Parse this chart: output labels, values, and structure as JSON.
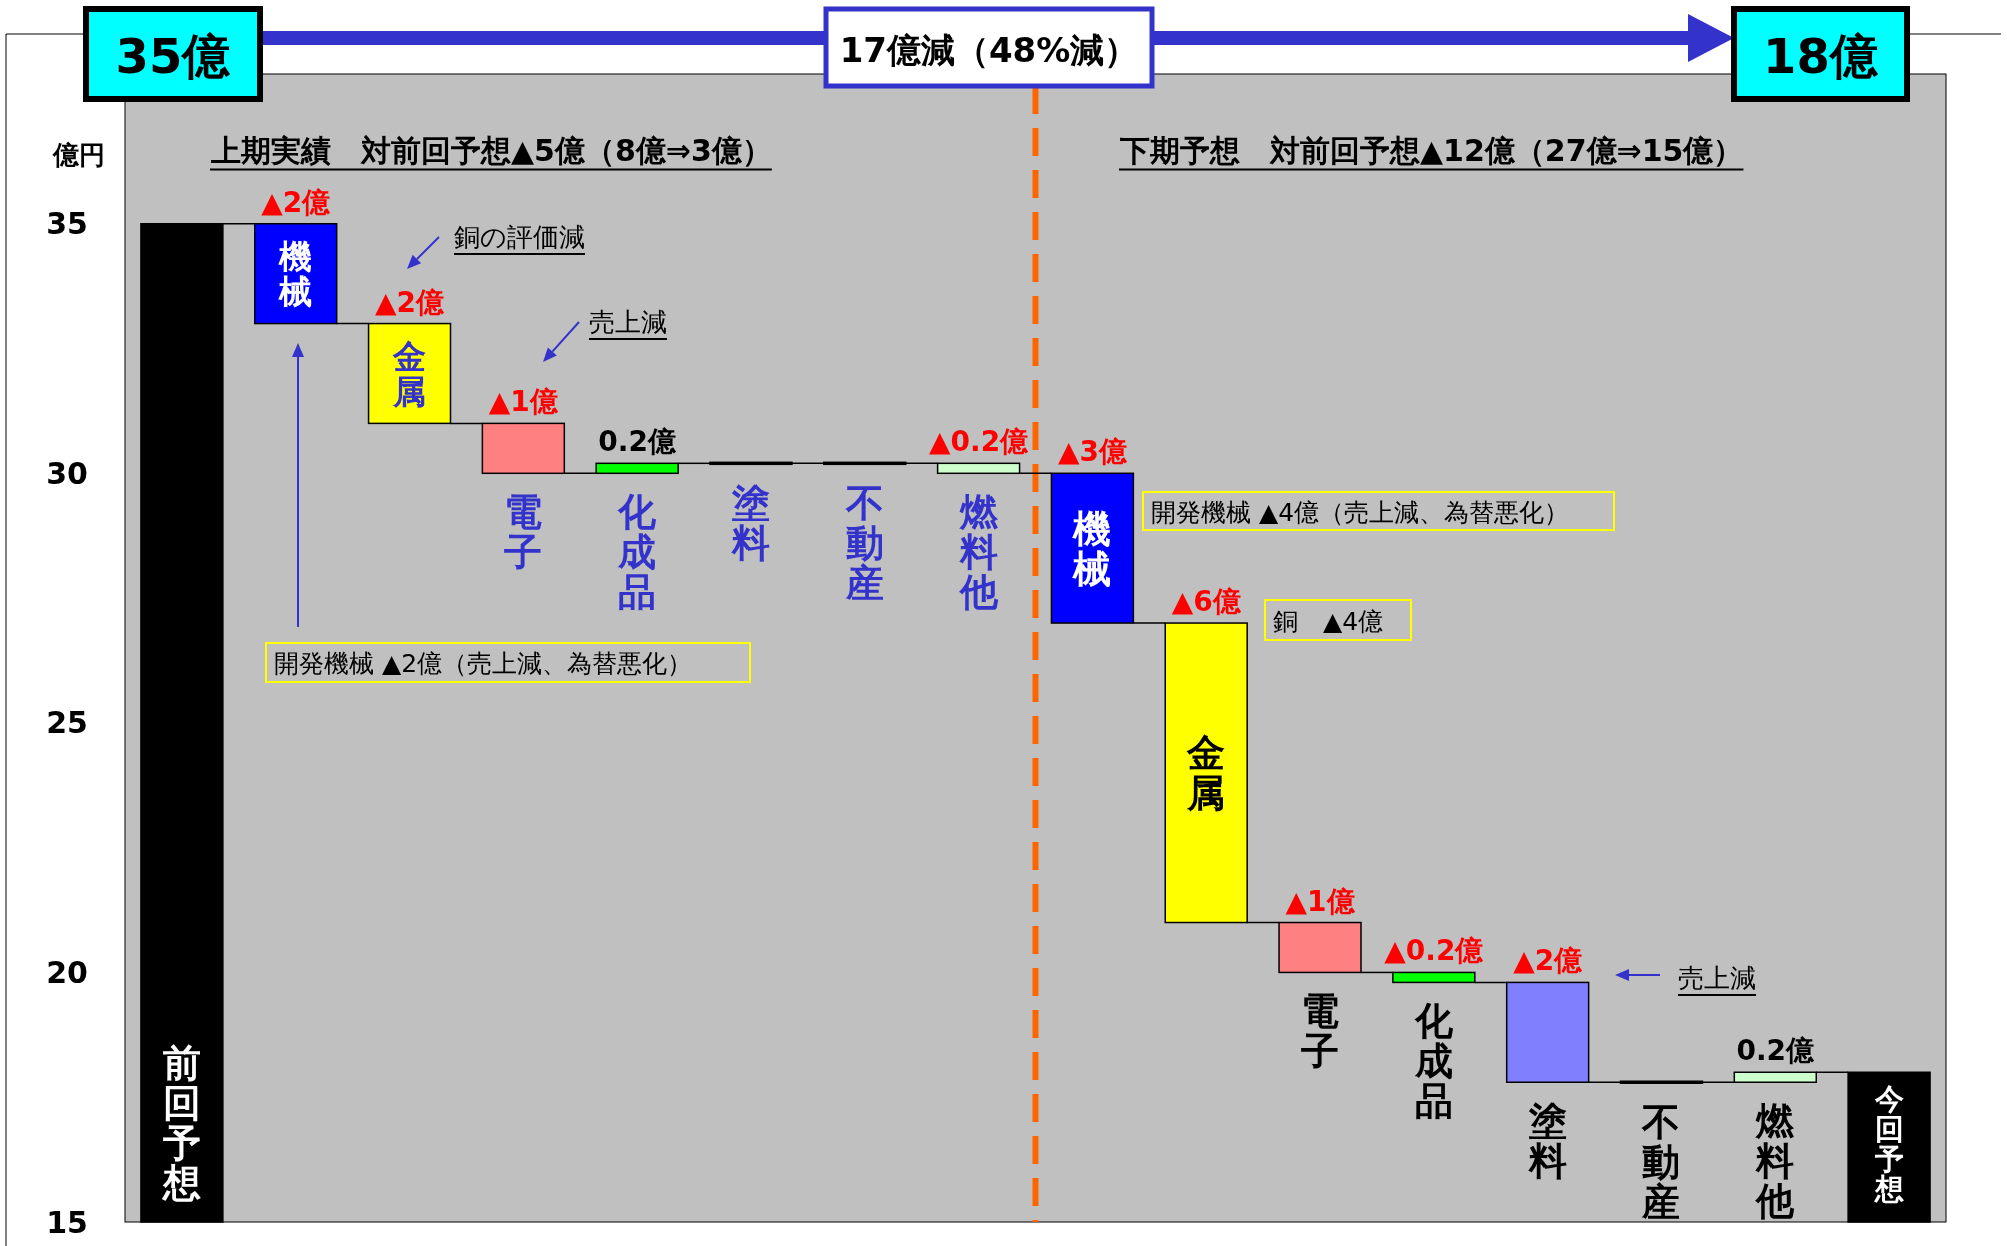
{
  "chart_data": {
    "type": "bar",
    "title": "17億減（48%減）",
    "ylabel": "億円",
    "categories": [
      "前回予想",
      "機械",
      "金属",
      "電子",
      "化成品",
      "塗料",
      "不動産",
      "燃料他",
      "機械",
      "金属",
      "電子",
      "化成品",
      "塗料",
      "不動産",
      "燃料他",
      "今回予想"
    ],
    "base": [
      15,
      35,
      33,
      31,
      30,
      30.2,
      30.2,
      30.2,
      30,
      27,
      21,
      20,
      19.8,
      17.8,
      17.8,
      15
    ],
    "values": [
      20,
      -2,
      -2,
      -1,
      0.2,
      0,
      0,
      -0.2,
      -3,
      -6,
      -1,
      -0.2,
      -2,
      0,
      0.2,
      3
    ],
    "colors": [
      "#000000",
      "#0000ff",
      "#ffff00",
      "#ff8080",
      "#00ff00",
      "#000000",
      "#000000",
      "#ccffcc",
      "#0000ff",
      "#ffff00",
      "#ff8080",
      "#00ff00",
      "#8080ff",
      "#000000",
      "#ccffcc",
      "#000000"
    ],
    "value_labels": [
      null,
      "▲2億",
      "▲2億",
      "▲1億",
      "0.2億",
      null,
      null,
      "▲0.2億",
      "▲3億",
      "▲6億",
      "▲1億",
      "▲0.2億",
      "▲2億",
      null,
      "0.2億",
      null
    ],
    "ylim": [
      15,
      38
    ],
    "yticks": [
      15,
      20,
      25,
      30,
      35
    ],
    "annotations": [
      "35億",
      "18億",
      "上期実績　対前回予想▲5億（8億⇒3億）",
      "下期予想　対前回予想▲12億（27億⇒15億）",
      "銅の評価減",
      "売上減",
      "開発機械 ▲2億（売上減、為替悪化）",
      "開発機械 ▲4億（売上減、為替悪化）",
      "銅　▲4億",
      "売上減"
    ]
  }
}
